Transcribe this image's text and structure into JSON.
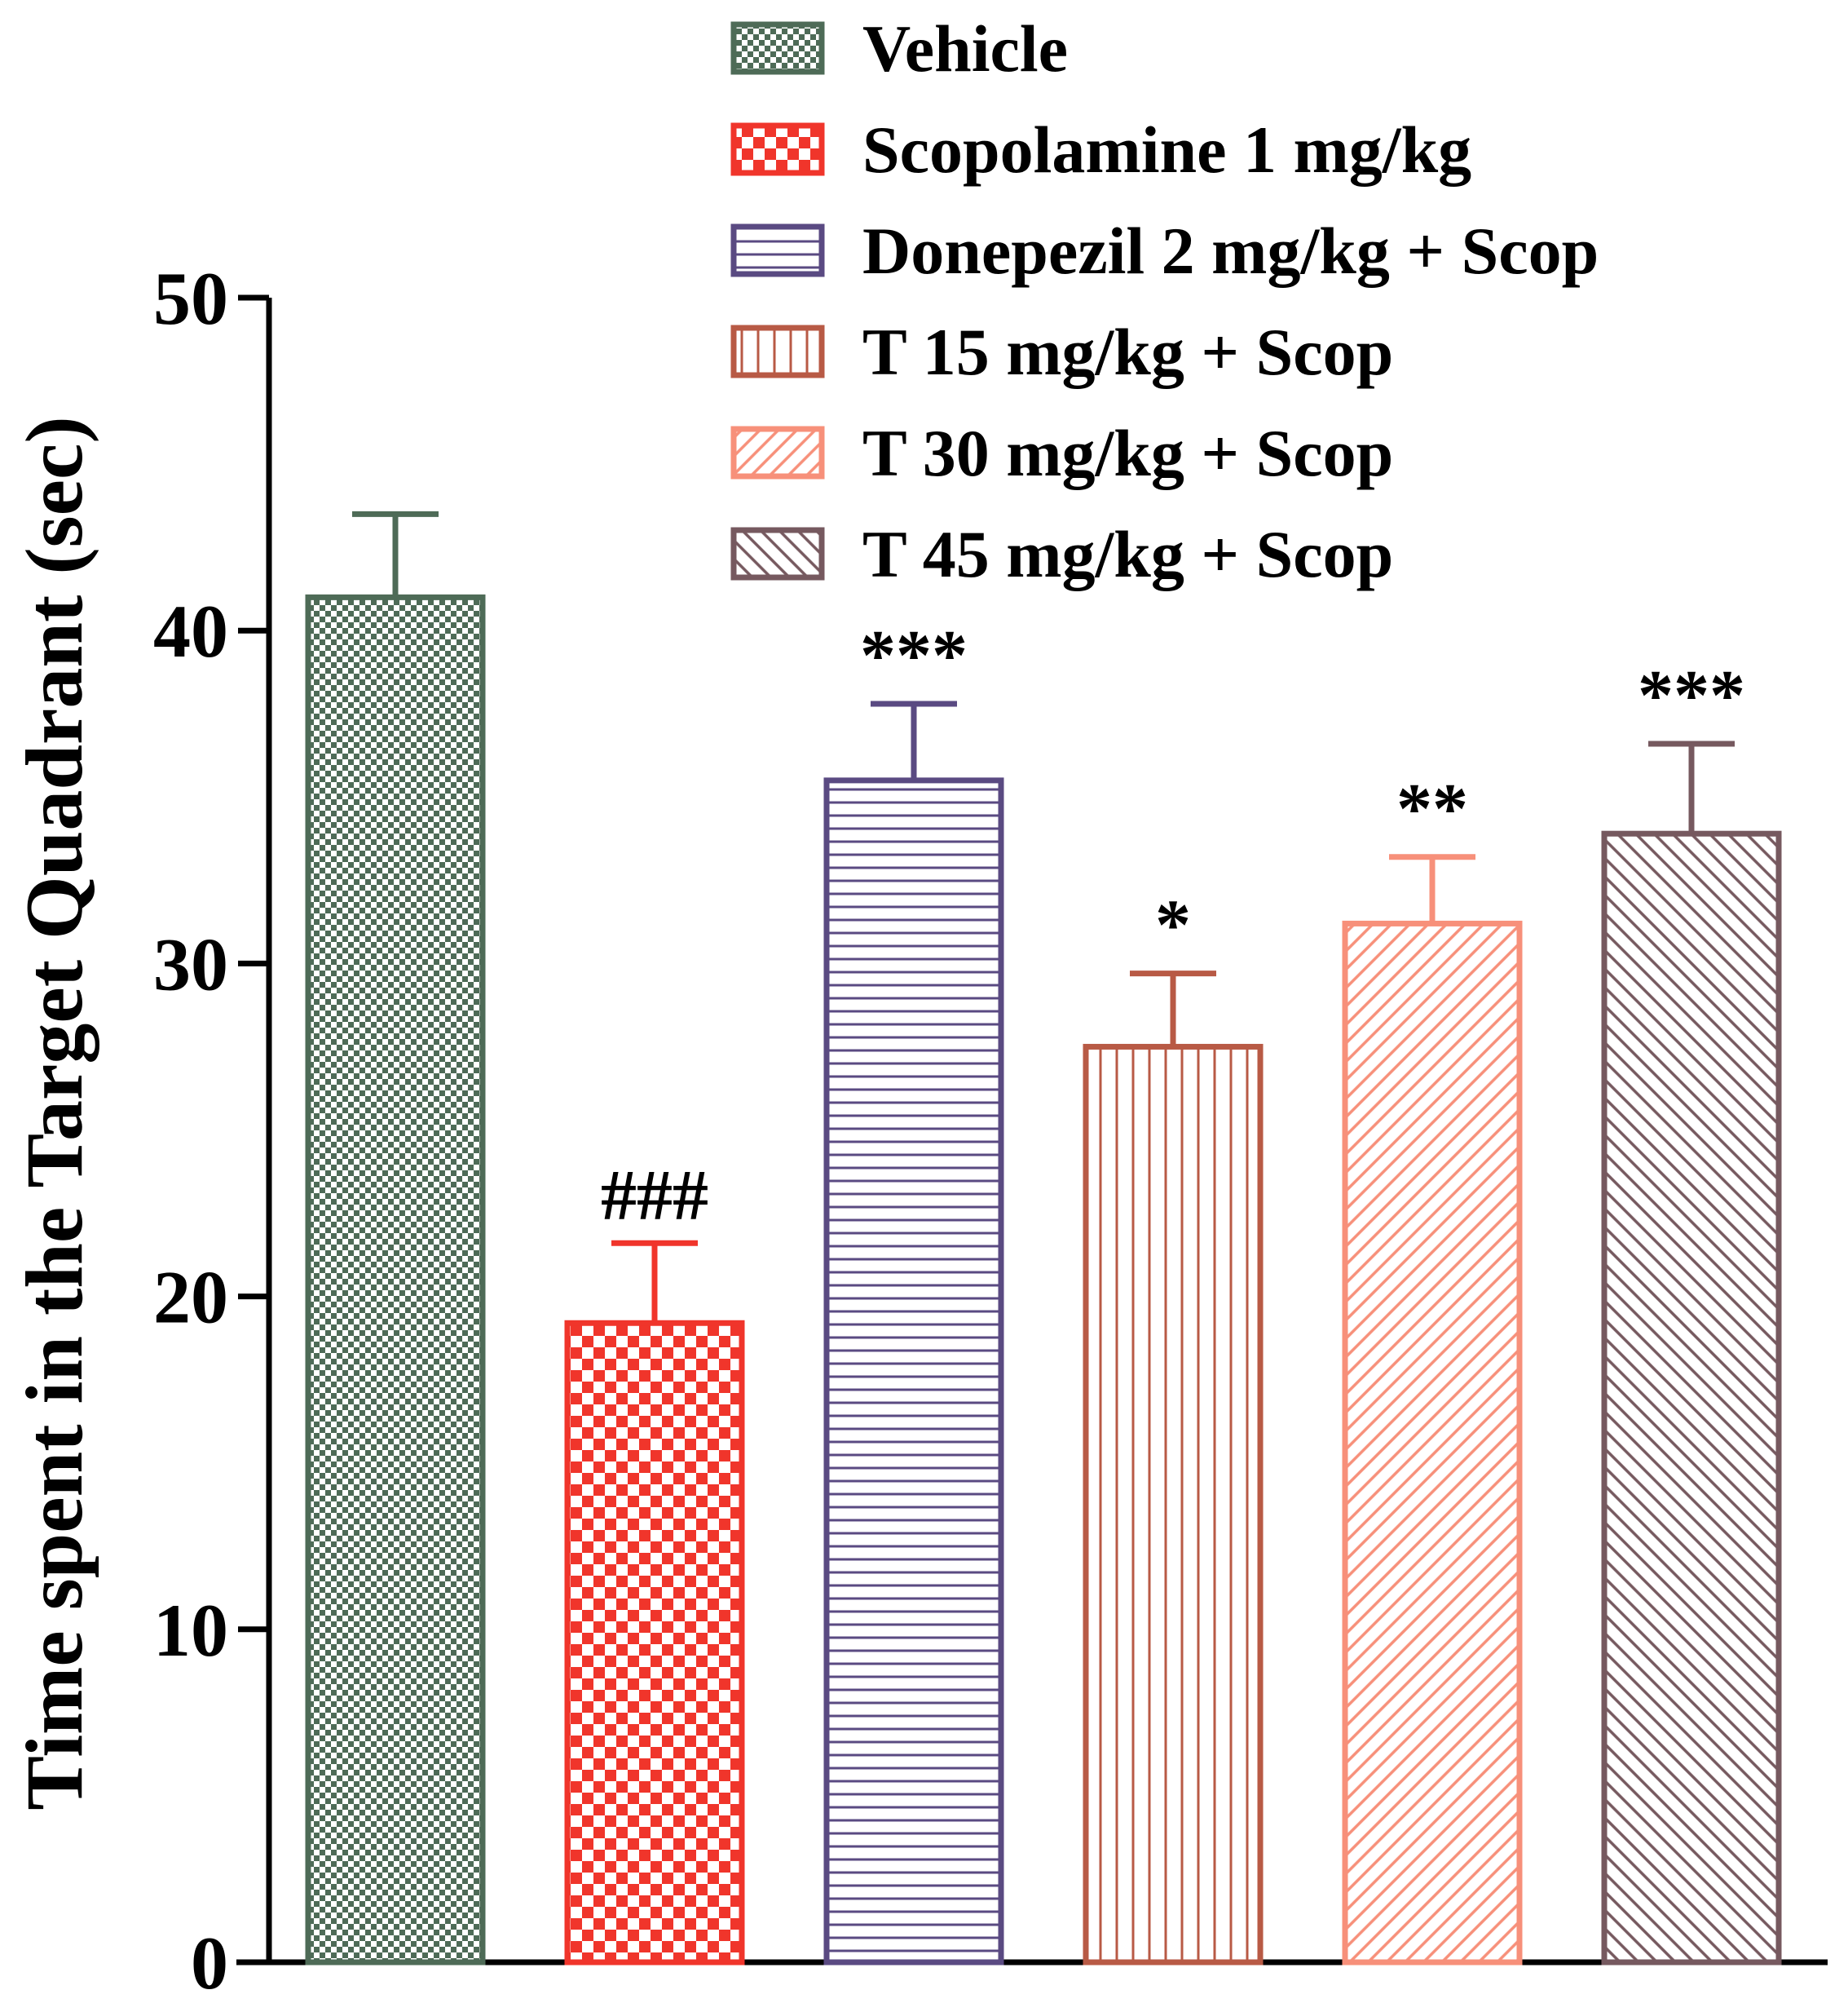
{
  "chart_data": {
    "type": "bar",
    "title": "",
    "xlabel": "",
    "ylabel": "Time spent in the Target Quadrant (sec)",
    "ylim": [
      0,
      50
    ],
    "yticks": [
      0,
      10,
      20,
      30,
      40,
      50
    ],
    "legend_position": "top-right",
    "series": [
      {
        "name": "Vehicle",
        "value": 41,
        "error": 2.5,
        "annotation": "",
        "color": "#4e6b57",
        "pattern": "checker-fine"
      },
      {
        "name": "Scopolamine 1 mg/kg",
        "value": 19.2,
        "error": 2.4,
        "annotation": "###",
        "color": "#f0352b",
        "pattern": "checker-coarse"
      },
      {
        "name": "Donepezil 2 mg/kg + Scop",
        "value": 35.5,
        "error": 2.3,
        "annotation": "***",
        "color": "#5a4a82",
        "pattern": "horizontal"
      },
      {
        "name": "T 15 mg/kg + Scop",
        "value": 27.5,
        "error": 2.2,
        "annotation": "*",
        "color": "#b85a45",
        "pattern": "vertical"
      },
      {
        "name": "T 30 mg/kg + Scop",
        "value": 31.2,
        "error": 2.0,
        "annotation": "**",
        "color": "#f7907a",
        "pattern": "diag-up"
      },
      {
        "name": "T 45 mg/kg + Scop",
        "value": 33.9,
        "error": 2.7,
        "annotation": "***",
        "color": "#76595f",
        "pattern": "diag-down"
      }
    ]
  }
}
